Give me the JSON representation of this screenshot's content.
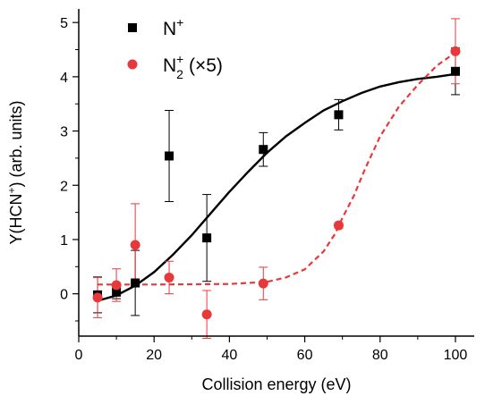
{
  "chart_data": {
    "type": "scatter",
    "xlabel": "Collision energy (eV)",
    "ylabel_parts": [
      "Y(HCN",
      "+",
      ") (arb. units)"
    ],
    "xlim": [
      0,
      105
    ],
    "ylim": [
      -0.78,
      5.25
    ],
    "xticks": [
      0,
      20,
      40,
      60,
      80,
      100
    ],
    "yticks": [
      0,
      1,
      2,
      3,
      4,
      5
    ],
    "grid": false,
    "legend_position": "top-left",
    "series": [
      {
        "name_parts": [
          "N",
          "+",
          "",
          ""
        ],
        "marker": "square",
        "color": "#000000",
        "points": [
          {
            "x": 5,
            "y": -0.02,
            "err": 0.33
          },
          {
            "x": 10,
            "y": 0.03,
            "err": 0.12
          },
          {
            "x": 15,
            "y": 0.2,
            "err": 0.6
          },
          {
            "x": 24,
            "y": 2.54,
            "err": 0.84
          },
          {
            "x": 34,
            "y": 1.03,
            "err": 0.8
          },
          {
            "x": 49,
            "y": 2.66,
            "err": 0.31
          },
          {
            "x": 69,
            "y": 3.3,
            "err": 0.28
          },
          {
            "x": 100,
            "y": 4.1,
            "err": 0.43
          }
        ],
        "fit": {
          "style": "solid",
          "points": [
            [
              5,
              -0.13
            ],
            [
              10,
              -0.03
            ],
            [
              15,
              0.15
            ],
            [
              20,
              0.4
            ],
            [
              25,
              0.72
            ],
            [
              30,
              1.08
            ],
            [
              35,
              1.48
            ],
            [
              40,
              1.88
            ],
            [
              45,
              2.25
            ],
            [
              50,
              2.6
            ],
            [
              55,
              2.9
            ],
            [
              60,
              3.15
            ],
            [
              65,
              3.38
            ],
            [
              70,
              3.55
            ],
            [
              75,
              3.7
            ],
            [
              80,
              3.82
            ],
            [
              85,
              3.9
            ],
            [
              90,
              3.96
            ],
            [
              95,
              4.0
            ],
            [
              100,
              4.05
            ]
          ]
        }
      },
      {
        "name_parts": [
          "N",
          "+",
          "2",
          " (×5)"
        ],
        "marker": "circle",
        "color": "#e8393a",
        "points": [
          {
            "x": 5,
            "y": -0.07,
            "err": 0.37
          },
          {
            "x": 10,
            "y": 0.16,
            "err": 0.3
          },
          {
            "x": 15,
            "y": 0.9,
            "err": 0.76
          },
          {
            "x": 24,
            "y": 0.3,
            "err": 0.3
          },
          {
            "x": 34,
            "y": -0.38,
            "err": 0.44
          },
          {
            "x": 49,
            "y": 0.19,
            "err": 0.3
          },
          {
            "x": 69,
            "y": 1.26,
            "err": 0.05
          },
          {
            "x": 100,
            "y": 4.47,
            "err": 0.6
          }
        ],
        "fit": {
          "style": "dashed",
          "points": [
            [
              5,
              0.17
            ],
            [
              20,
              0.17
            ],
            [
              40,
              0.18
            ],
            [
              50,
              0.22
            ],
            [
              55,
              0.3
            ],
            [
              60,
              0.45
            ],
            [
              65,
              0.78
            ],
            [
              68,
              1.1
            ],
            [
              70,
              1.4
            ],
            [
              73,
              1.8
            ],
            [
              76,
              2.3
            ],
            [
              80,
              2.9
            ],
            [
              85,
              3.45
            ],
            [
              90,
              3.85
            ],
            [
              95,
              4.2
            ],
            [
              100,
              4.45
            ]
          ]
        }
      }
    ]
  }
}
